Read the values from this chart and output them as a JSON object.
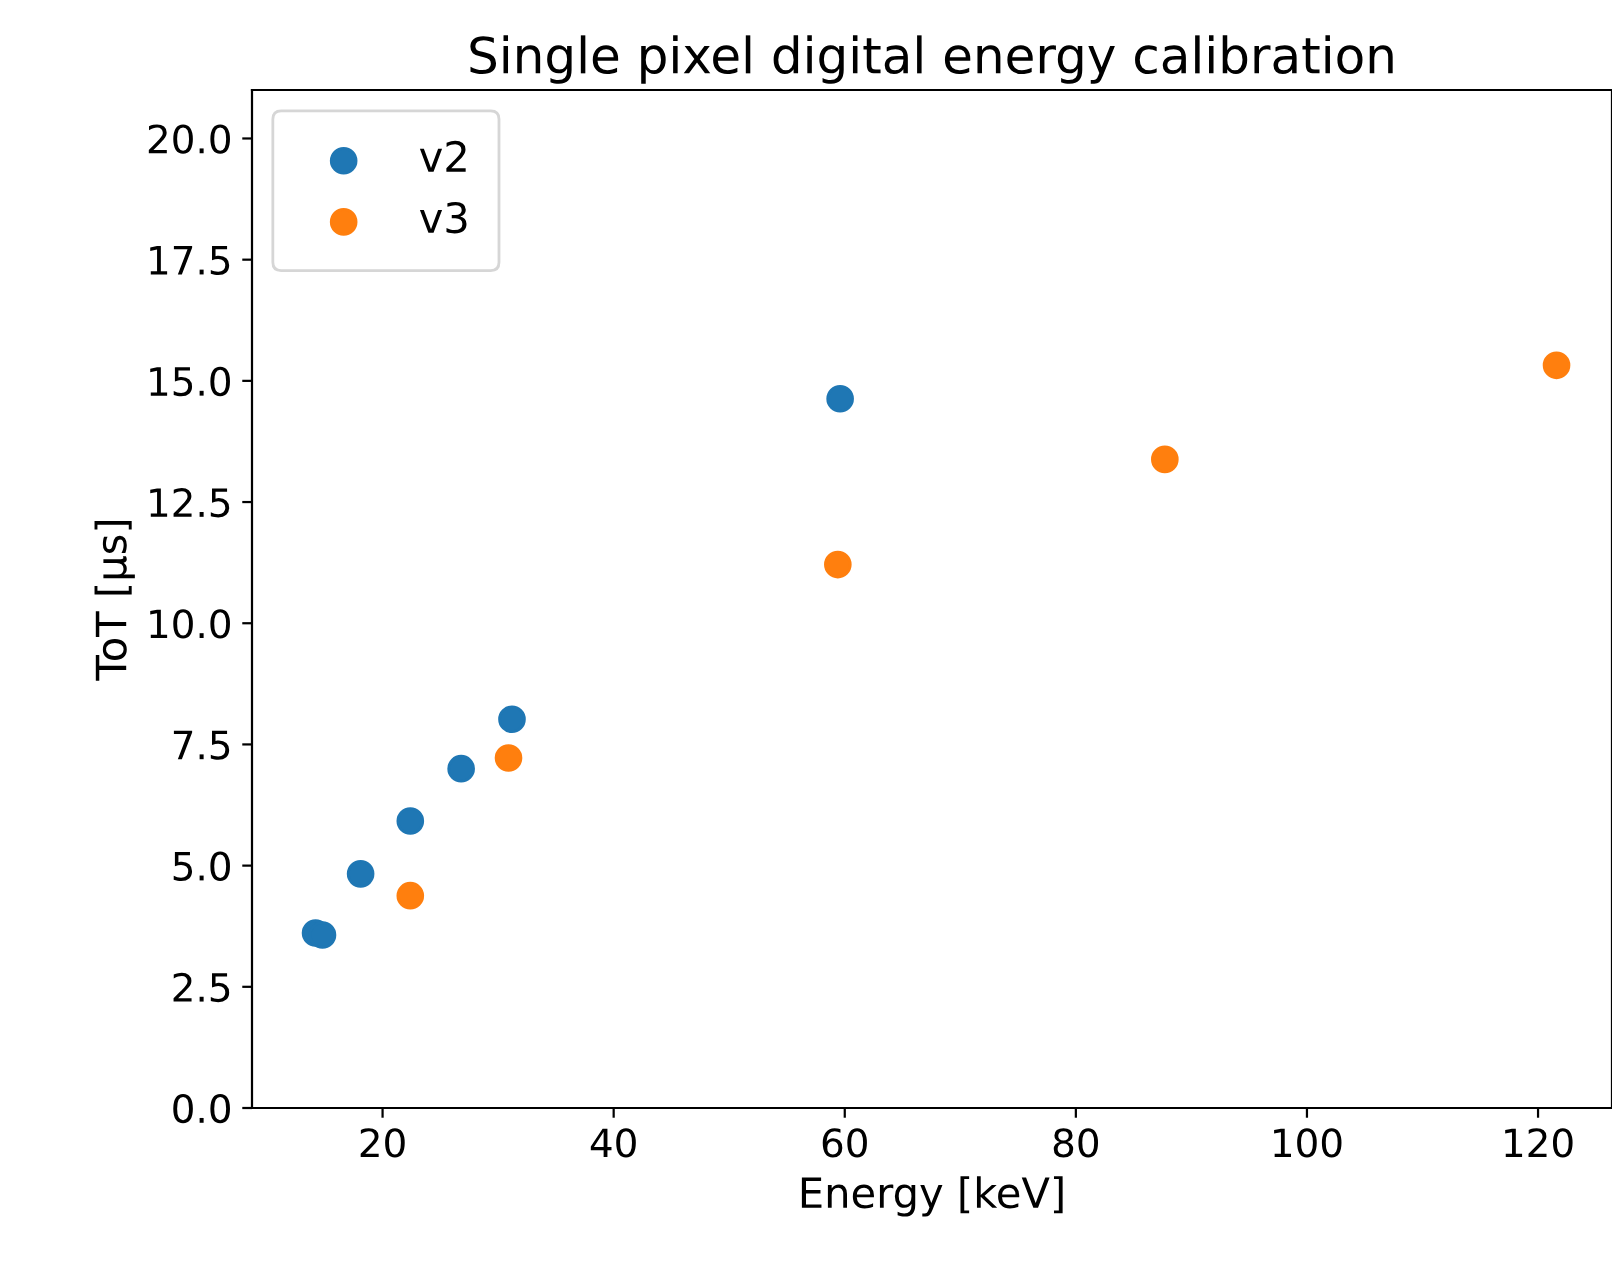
{
  "chart_data": {
    "type": "scatter",
    "title": "Single pixel digital energy calibration",
    "xlabel": "Energy [keV]",
    "ylabel": "ToT [μs]",
    "series": [
      {
        "name": "v2",
        "color": "#1f77b4",
        "x": [
          14.2,
          14.8,
          18.1,
          22.4,
          26.8,
          31.2,
          59.6
        ],
        "values": [
          3.61,
          3.57,
          4.83,
          5.92,
          7.0,
          8.02,
          14.63
        ]
      },
      {
        "name": "v3",
        "color": "#ff7f0e",
        "x": [
          22.4,
          30.9,
          59.4,
          87.7,
          121.6
        ],
        "values": [
          4.38,
          7.22,
          11.21,
          13.38,
          15.32
        ]
      }
    ],
    "xlim": [
      8.7,
      126.4
    ],
    "ylim": [
      0,
      21.0
    ],
    "xticks": [
      20,
      40,
      60,
      80,
      100,
      120
    ],
    "yticks": [
      {
        "value": 0,
        "label": "0.0"
      },
      {
        "value": 2.5,
        "label": "2.5"
      },
      {
        "value": 5,
        "label": "5.0"
      },
      {
        "value": 7.5,
        "label": "7.5"
      },
      {
        "value": 10,
        "label": "10.0"
      },
      {
        "value": 12.5,
        "label": "12.5"
      },
      {
        "value": 15,
        "label": "15.0"
      },
      {
        "value": 17.5,
        "label": "17.5"
      },
      {
        "value": 20,
        "label": "20.0"
      }
    ],
    "marker": "circle",
    "grid": false,
    "legend": "top left"
  }
}
